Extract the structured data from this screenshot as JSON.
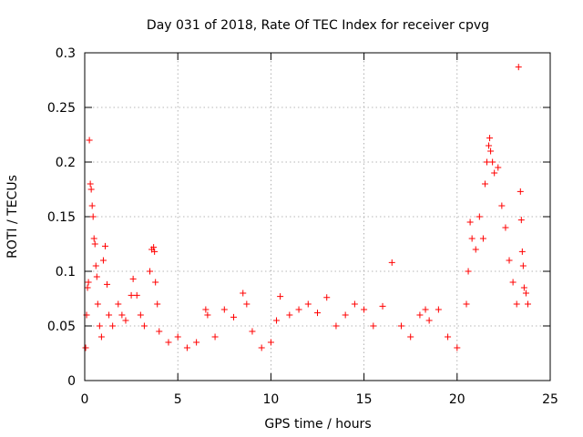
{
  "chart_data": {
    "type": "scatter",
    "title": "Day 031 of 2018, Rate Of TEC Index for receiver cpvg",
    "xlabel": "GPS time / hours",
    "ylabel": "ROTI / TECUs",
    "xlim": [
      0,
      25
    ],
    "ylim": [
      0,
      0.3
    ],
    "xticks": [
      0,
      5,
      10,
      15,
      20,
      25
    ],
    "xtick_labels": [
      "0",
      "5",
      "10",
      "15",
      "20",
      "25"
    ],
    "yticks": [
      0,
      0.05,
      0.1,
      0.15,
      0.2,
      0.25,
      0.3
    ],
    "ytick_labels": [
      "0",
      "0.05",
      "0.1",
      "0.15",
      "0.2",
      "0.25",
      "0.3"
    ],
    "grid": true,
    "marker": "+",
    "color": "#ff0000",
    "series": [
      {
        "name": "ROTI",
        "points": [
          [
            0.05,
            0.03
          ],
          [
            0.1,
            0.06
          ],
          [
            0.15,
            0.085
          ],
          [
            0.2,
            0.09
          ],
          [
            0.25,
            0.22
          ],
          [
            0.3,
            0.18
          ],
          [
            0.35,
            0.175
          ],
          [
            0.4,
            0.16
          ],
          [
            0.45,
            0.15
          ],
          [
            0.5,
            0.13
          ],
          [
            0.55,
            0.125
          ],
          [
            0.6,
            0.105
          ],
          [
            0.65,
            0.095
          ],
          [
            0.7,
            0.07
          ],
          [
            0.8,
            0.05
          ],
          [
            0.9,
            0.04
          ],
          [
            1.0,
            0.11
          ],
          [
            1.1,
            0.123
          ],
          [
            1.2,
            0.088
          ],
          [
            1.3,
            0.06
          ],
          [
            1.5,
            0.05
          ],
          [
            1.8,
            0.07
          ],
          [
            2.0,
            0.06
          ],
          [
            2.2,
            0.055
          ],
          [
            2.5,
            0.078
          ],
          [
            2.6,
            0.093
          ],
          [
            2.8,
            0.078
          ],
          [
            3.0,
            0.06
          ],
          [
            3.2,
            0.05
          ],
          [
            3.5,
            0.1
          ],
          [
            3.6,
            0.12
          ],
          [
            3.7,
            0.122
          ],
          [
            3.75,
            0.118
          ],
          [
            3.8,
            0.09
          ],
          [
            3.9,
            0.07
          ],
          [
            4.0,
            0.045
          ],
          [
            4.5,
            0.035
          ],
          [
            5.0,
            0.04
          ],
          [
            5.5,
            0.03
          ],
          [
            6.0,
            0.035
          ],
          [
            6.5,
            0.065
          ],
          [
            6.6,
            0.06
          ],
          [
            7.0,
            0.04
          ],
          [
            7.5,
            0.065
          ],
          [
            8.0,
            0.058
          ],
          [
            8.5,
            0.08
          ],
          [
            8.7,
            0.07
          ],
          [
            9.0,
            0.045
          ],
          [
            9.5,
            0.03
          ],
          [
            10.0,
            0.035
          ],
          [
            10.3,
            0.055
          ],
          [
            10.5,
            0.077
          ],
          [
            11.0,
            0.06
          ],
          [
            11.5,
            0.065
          ],
          [
            12.0,
            0.07
          ],
          [
            12.5,
            0.062
          ],
          [
            13.0,
            0.076
          ],
          [
            13.5,
            0.05
          ],
          [
            14.0,
            0.06
          ],
          [
            14.5,
            0.07
          ],
          [
            15.0,
            0.065
          ],
          [
            15.5,
            0.05
          ],
          [
            16.0,
            0.068
          ],
          [
            16.5,
            0.108
          ],
          [
            17.0,
            0.05
          ],
          [
            17.5,
            0.04
          ],
          [
            18.0,
            0.06
          ],
          [
            18.3,
            0.065
          ],
          [
            18.5,
            0.055
          ],
          [
            19.0,
            0.065
          ],
          [
            19.5,
            0.04
          ],
          [
            20.0,
            0.03
          ],
          [
            20.5,
            0.07
          ],
          [
            20.6,
            0.1
          ],
          [
            20.7,
            0.145
          ],
          [
            20.8,
            0.13
          ],
          [
            21.0,
            0.12
          ],
          [
            21.2,
            0.15
          ],
          [
            21.4,
            0.13
          ],
          [
            21.5,
            0.18
          ],
          [
            21.6,
            0.2
          ],
          [
            21.7,
            0.215
          ],
          [
            21.75,
            0.222
          ],
          [
            21.8,
            0.21
          ],
          [
            21.9,
            0.2
          ],
          [
            22.0,
            0.19
          ],
          [
            22.2,
            0.195
          ],
          [
            22.4,
            0.16
          ],
          [
            22.6,
            0.14
          ],
          [
            22.8,
            0.11
          ],
          [
            23.0,
            0.09
          ],
          [
            23.2,
            0.07
          ],
          [
            23.3,
            0.287
          ],
          [
            23.4,
            0.173
          ],
          [
            23.45,
            0.147
          ],
          [
            23.5,
            0.118
          ],
          [
            23.55,
            0.105
          ],
          [
            23.6,
            0.085
          ],
          [
            23.7,
            0.08
          ],
          [
            23.8,
            0.07
          ]
        ]
      }
    ]
  }
}
